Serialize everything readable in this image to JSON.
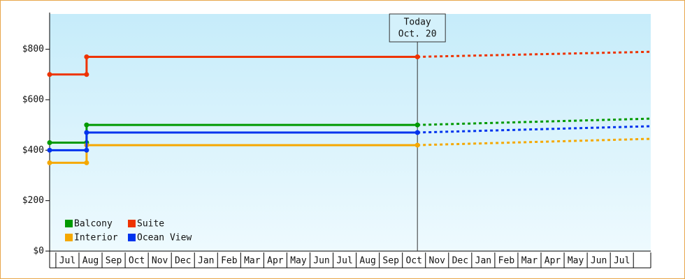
{
  "chart_data": {
    "type": "line",
    "categories": [
      null,
      "Jul",
      "Aug",
      "Sep",
      "Oct",
      "Nov",
      "Dec",
      "Jan",
      "Feb",
      "Mar",
      "Apr",
      "May",
      "Jun",
      "Jul",
      "Aug",
      "Sep",
      "Oct",
      "Nov",
      "Dec",
      "Jan",
      "Feb",
      "Mar",
      "Apr",
      "May",
      "Jun",
      "Jul",
      null
    ],
    "xlim": [
      -0.27,
      25.75
    ],
    "x": [
      -0.27,
      1.33,
      1.33,
      15.65
    ],
    "forecast_x": [
      15.65,
      25.75
    ],
    "ylim": [
      0,
      940
    ],
    "yticks": [
      {
        "value": 0,
        "label": "$0"
      },
      {
        "value": 200,
        "label": "$200"
      },
      {
        "value": 400,
        "label": "$400"
      },
      {
        "value": 600,
        "label": "$600"
      },
      {
        "value": 800,
        "label": "$800"
      }
    ],
    "series": [
      {
        "name": "Balcony",
        "color": "#009a00",
        "values": [
          430,
          430,
          500,
          500
        ],
        "forecast": [
          500,
          525
        ]
      },
      {
        "name": "Suite",
        "color": "#ee3300",
        "values": [
          700,
          700,
          770,
          770
        ],
        "forecast": [
          770,
          790
        ]
      },
      {
        "name": "Interior",
        "color": "#f5a800",
        "values": [
          350,
          350,
          420,
          420
        ],
        "forecast": [
          420,
          445
        ]
      },
      {
        "name": "Ocean View",
        "color": "#0033ee",
        "values": [
          400,
          400,
          470,
          470
        ],
        "forecast": [
          470,
          495
        ]
      }
    ],
    "annotation": {
      "lines": [
        "Today",
        "Oct. 20"
      ],
      "x": 15.65
    },
    "legend": "bottom-left"
  }
}
